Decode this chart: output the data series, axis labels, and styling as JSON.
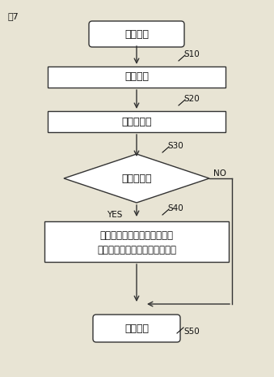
{
  "title": "図7",
  "bg_color": "#e8e4d4",
  "box_color": "#ffffff",
  "box_edge": "#333333",
  "arrow_color": "#333333",
  "text_color": "#111111",
  "start_label": "スタート",
  "step1_label": "振動検出",
  "step1_code": "S10",
  "step2_label": "周波数分析",
  "step2_code": "S20",
  "diamond_label": "外輪異常？",
  "diamond_code": "S30",
  "yes_label": "YES",
  "no_label": "NO",
  "step4_line1": "外輪の負荷域移動を指示する",
  "step4_line2": "ための信号を監視サーバへ出力",
  "step4_code": "S40",
  "end_label": "リターン",
  "end_code": "S50",
  "fig_width": 3.39,
  "fig_height": 4.65,
  "dpi": 100
}
